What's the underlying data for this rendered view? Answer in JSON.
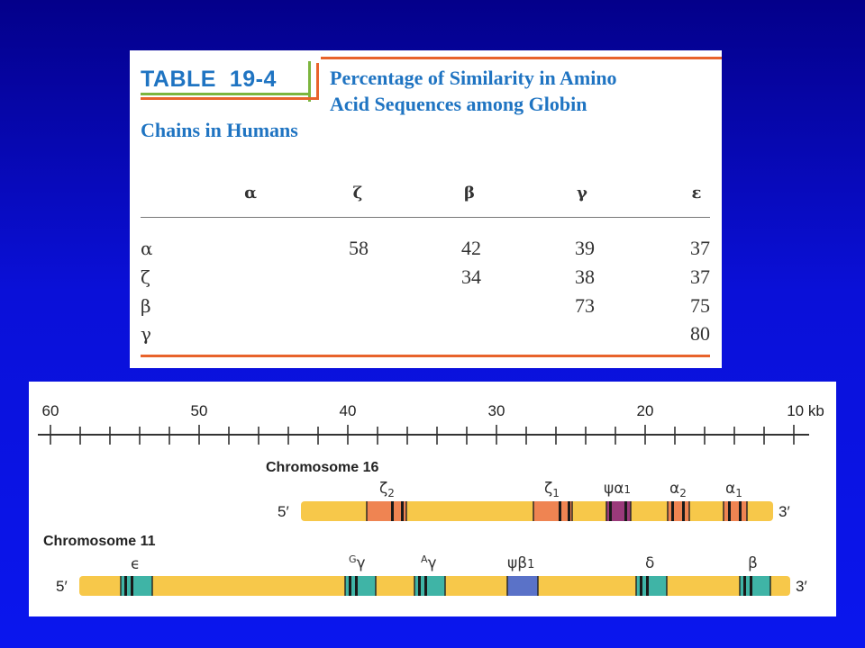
{
  "table": {
    "label": "TABLE  19-4",
    "caption_lines": [
      "Percentage of Similarity in Amino",
      "Acid Sequences among Globin",
      "Chains in Humans"
    ],
    "columns": [
      "α",
      "ζ",
      "β",
      "γ",
      "ε"
    ],
    "rows": [
      {
        "label": "α",
        "values": [
          "",
          "58",
          "42",
          "39",
          "37"
        ]
      },
      {
        "label": "ζ",
        "values": [
          "",
          "",
          "34",
          "38",
          "37"
        ]
      },
      {
        "label": "β",
        "values": [
          "",
          "",
          "",
          "73",
          "75"
        ]
      },
      {
        "label": "γ",
        "values": [
          "",
          "",
          "",
          "",
          "80"
        ]
      }
    ]
  },
  "gene_map": {
    "scale": {
      "ticks": [
        "60",
        "50",
        "40",
        "30",
        "20",
        "10 kb"
      ]
    },
    "chromosome_16": {
      "title": "Chromosome 16",
      "end5": "5′",
      "end3": "3′",
      "genes": [
        {
          "name": "zeta2",
          "symbol": "ζ",
          "sub": "2"
        },
        {
          "name": "zeta1",
          "symbol": "ζ",
          "sub": "1"
        },
        {
          "name": "psi-alpha1",
          "symbol": "ψα",
          "sub": "1"
        },
        {
          "name": "alpha2",
          "symbol": "α",
          "sub": "2"
        },
        {
          "name": "alpha1",
          "symbol": "α",
          "sub": "1"
        }
      ]
    },
    "chromosome_11": {
      "title": "Chromosome 11",
      "end5": "5′",
      "end3": "3′",
      "genes": [
        {
          "name": "epsilon",
          "symbol": "ϵ",
          "pre": "",
          "sub": ""
        },
        {
          "name": "G-gamma",
          "symbol": "γ",
          "pre": "G",
          "sub": ""
        },
        {
          "name": "A-gamma",
          "symbol": "γ",
          "pre": "A",
          "sub": ""
        },
        {
          "name": "psi-beta1",
          "symbol": "ψβ",
          "pre": "",
          "sub": "1"
        },
        {
          "name": "delta",
          "symbol": "δ",
          "pre": "",
          "sub": ""
        },
        {
          "name": "beta",
          "symbol": "β",
          "pre": "",
          "sub": ""
        }
      ]
    },
    "colors": {
      "chromosome": "#f7c84a",
      "zeta_alpha_gene": "#ef8452",
      "pseudo_alpha": "#9a3a7a",
      "beta_family_gene": "#3fb4a6",
      "pseudo_beta": "#5a72c8"
    }
  }
}
